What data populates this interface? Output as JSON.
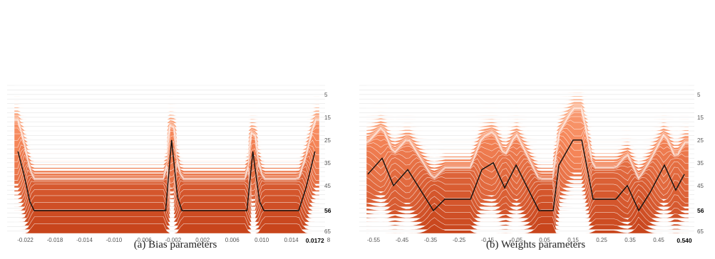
{
  "chart_data": [
    {
      "type": "area",
      "subtype": "ridgeline-stacked-histograms",
      "caption": "(a) Bias parameters",
      "xlabel": "",
      "ylabel": "",
      "x_ticks": [
        "-0.022",
        "-0.018",
        "-0.014",
        "-0.010",
        "-0.006",
        "-0.002",
        "0.002",
        "0.006",
        "0.010",
        "0.014"
      ],
      "x_highlight": "0.0172",
      "x_edge_partial": "8",
      "xlim": [
        -0.0235,
        0.0178
      ],
      "y_ticks": [
        "5",
        "15",
        "25",
        "35",
        "45",
        "56",
        "65"
      ],
      "y_highlight": "56",
      "ylim": [
        1,
        66
      ],
      "grid": false,
      "colors": {
        "far": "#fdc4a4",
        "mid": "#f6875a",
        "near": "#c8451c",
        "highlight_line": "#111111"
      },
      "highlight_curve": [
        [
          -0.023,
          30
        ],
        [
          -0.0222,
          40
        ],
        [
          -0.0214,
          52
        ],
        [
          -0.0208,
          56
        ],
        [
          -0.003,
          56
        ],
        [
          -0.0022,
          25
        ],
        [
          -0.0014,
          50
        ],
        [
          -0.0008,
          56
        ],
        [
          0.008,
          56
        ],
        [
          0.0088,
          30
        ],
        [
          0.0097,
          52
        ],
        [
          0.0103,
          56
        ],
        [
          0.015,
          56
        ],
        [
          0.016,
          46
        ],
        [
          0.0172,
          30
        ]
      ]
    },
    {
      "type": "area",
      "subtype": "ridgeline-stacked-histograms",
      "caption": "(b) Weights parameters",
      "xlabel": "",
      "ylabel": "",
      "x_ticks": [
        "-0.55",
        "-0.45",
        "-0.35",
        "-0.25",
        "-0.15",
        "-0.05",
        "0.05",
        "0.15",
        "0.25",
        "0.35",
        "0.45"
      ],
      "x_highlight": "0.540",
      "xlim": [
        -0.575,
        0.555
      ],
      "y_ticks": [
        "5",
        "15",
        "25",
        "35",
        "45",
        "56",
        "65"
      ],
      "y_highlight": "56",
      "ylim": [
        1,
        66
      ],
      "grid": false,
      "colors": {
        "far": "#fdc4a4",
        "mid": "#f6875a",
        "near": "#c8451c",
        "highlight_line": "#111111"
      },
      "highlight_curve": [
        [
          -0.57,
          40
        ],
        [
          -0.52,
          33
        ],
        [
          -0.48,
          45
        ],
        [
          -0.43,
          38
        ],
        [
          -0.38,
          48
        ],
        [
          -0.34,
          56
        ],
        [
          -0.3,
          51
        ],
        [
          -0.25,
          51
        ],
        [
          -0.21,
          51
        ],
        [
          -0.17,
          38
        ],
        [
          -0.13,
          35
        ],
        [
          -0.09,
          46
        ],
        [
          -0.05,
          36
        ],
        [
          -0.01,
          46
        ],
        [
          0.03,
          56
        ],
        [
          0.08,
          56
        ],
        [
          0.1,
          36
        ],
        [
          0.15,
          25
        ],
        [
          0.18,
          25
        ],
        [
          0.22,
          51
        ],
        [
          0.27,
          51
        ],
        [
          0.3,
          51
        ],
        [
          0.34,
          45
        ],
        [
          0.38,
          56
        ],
        [
          0.42,
          48
        ],
        [
          0.47,
          36
        ],
        [
          0.51,
          47
        ],
        [
          0.54,
          40
        ]
      ]
    }
  ]
}
